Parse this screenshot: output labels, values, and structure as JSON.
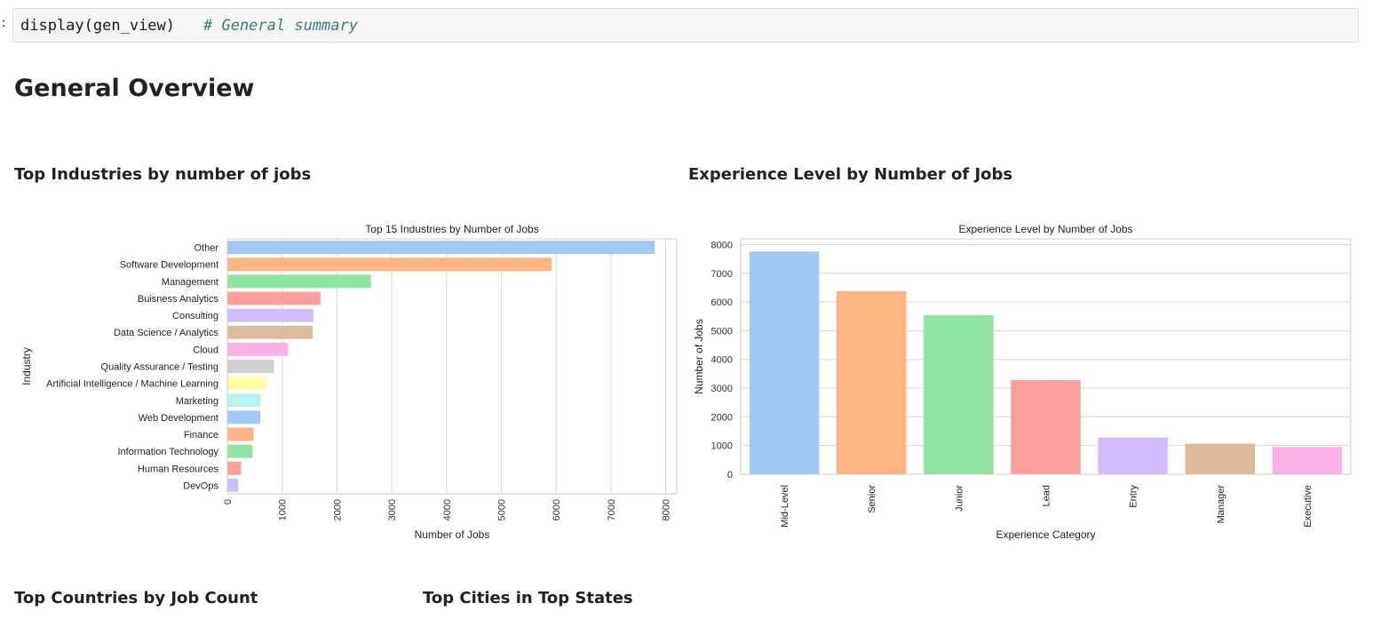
{
  "cell": {
    "prompt_mark": ":",
    "code": "display(gen_view)",
    "comment": "# General summary"
  },
  "page": {
    "title": "General Overview",
    "section_industries": "Top Industries by number of jobs",
    "section_experience": "Experience Level by Number of Jobs",
    "section_countries": "Top Countries by Job Count",
    "section_cities": "Top Cities in Top States"
  },
  "palette": [
    "#a1c9f4",
    "#ffb482",
    "#8de5a1",
    "#ff9f9b",
    "#d0bbff",
    "#debb9b",
    "#fab0e4",
    "#cfcfcf",
    "#fffea3",
    "#b9f2f0"
  ],
  "chart_data": [
    {
      "type": "bar",
      "orientation": "horizontal",
      "title": "Top 15 Industries by Number of Jobs",
      "xlabel": "Number of Jobs",
      "ylabel": "Industry",
      "xlim": [
        0,
        8200
      ],
      "xticks": [
        0,
        1000,
        2000,
        3000,
        4000,
        5000,
        6000,
        7000,
        8000
      ],
      "grid": "vertical",
      "categories": [
        "Other",
        "Software Development",
        "Management",
        "Buisness Analytics",
        "Consulting",
        "Data Science / Analytics",
        "Cloud",
        "Quality Assurance / Testing",
        "Artificial Intelligence / Machine Learning",
        "Marketing",
        "Web Development",
        "Finance",
        "Information Technology",
        "Human Resources",
        "DevOps"
      ],
      "values": [
        7800,
        5920,
        2620,
        1700,
        1570,
        1560,
        1110,
        850,
        710,
        610,
        600,
        480,
        460,
        250,
        200
      ]
    },
    {
      "type": "bar",
      "orientation": "vertical",
      "title": "Experience Level by Number of Jobs",
      "xlabel": "Experience Category",
      "ylabel": "Number of Jobs",
      "ylim": [
        0,
        8200
      ],
      "yticks": [
        0,
        1000,
        2000,
        3000,
        4000,
        5000,
        6000,
        7000,
        8000
      ],
      "grid": "horizontal",
      "categories": [
        "Mid-Level",
        "Senior",
        "Junior",
        "Lead",
        "Entry",
        "Manager",
        "Executive"
      ],
      "values": [
        7760,
        6380,
        5540,
        3280,
        1280,
        1070,
        950
      ]
    }
  ]
}
